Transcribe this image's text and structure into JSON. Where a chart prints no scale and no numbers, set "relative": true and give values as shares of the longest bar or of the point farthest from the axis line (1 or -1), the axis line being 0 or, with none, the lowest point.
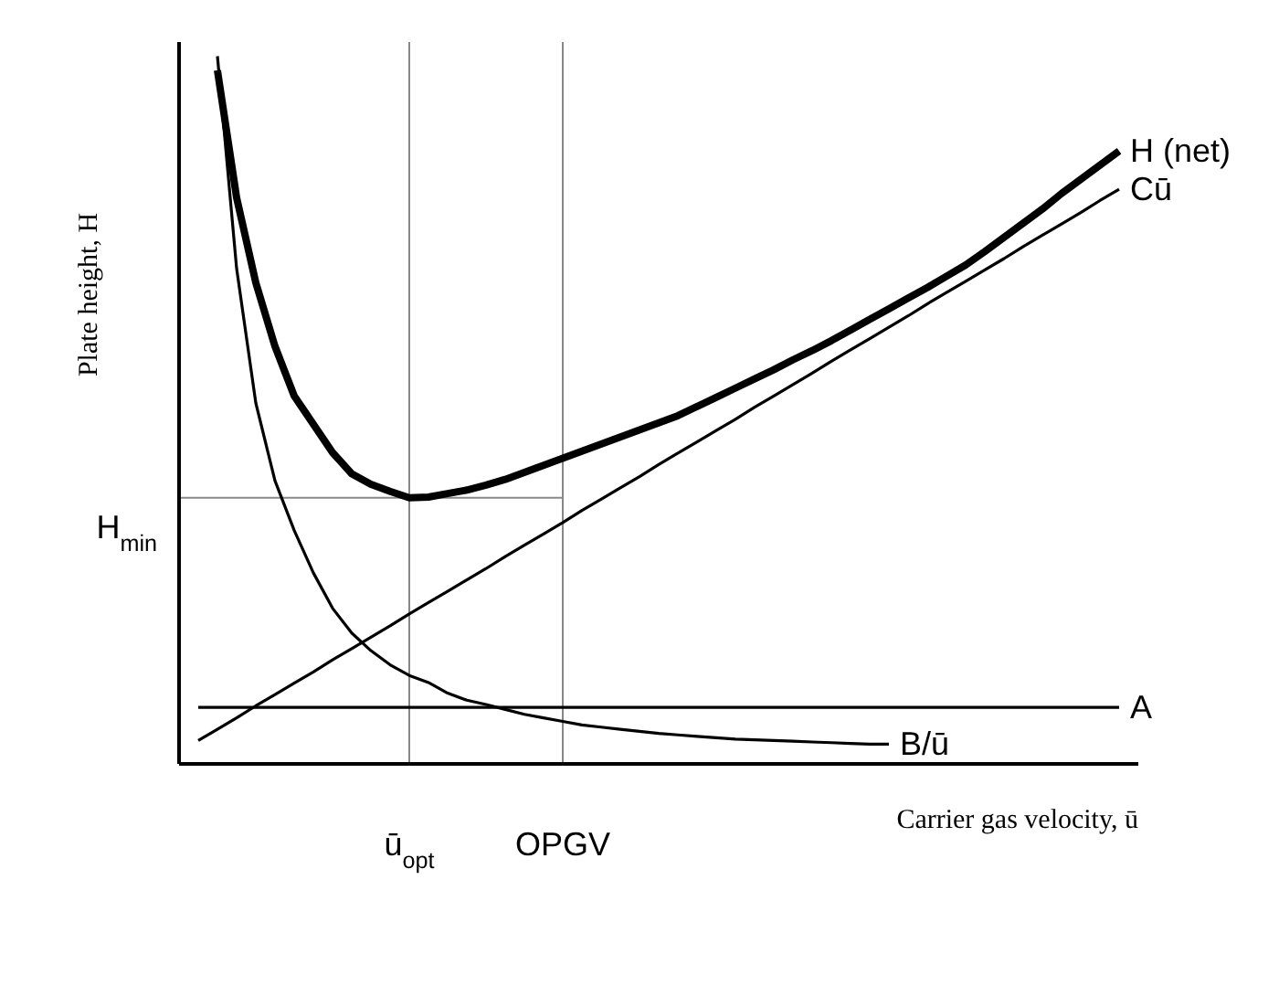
{
  "chart_data": {
    "type": "line",
    "relative": true,
    "xlabel": "Carrier gas velocity, ū",
    "ylabel": "Plate height, H",
    "marker": "none",
    "categories": [
      null,
      null,
      null,
      null,
      null,
      null,
      null,
      null,
      null,
      null,
      null,
      null,
      null,
      null,
      null,
      null,
      null,
      null,
      null,
      null,
      null,
      null,
      null,
      null,
      null,
      null,
      null,
      null,
      null,
      null,
      null,
      null,
      null,
      null,
      null,
      null,
      null,
      null,
      null,
      null,
      null,
      null,
      null,
      null,
      null,
      null,
      null,
      null,
      null,
      null,
      null
    ],
    "series": [
      {
        "name": "H (net)",
        "color": "#000000",
        "values": [
          null,
          null,
          0.98,
          0.8,
          0.68,
          0.59,
          0.52,
          0.48,
          0.44,
          0.41,
          0.395,
          0.385,
          0.376,
          0.377,
          0.382,
          0.387,
          0.394,
          0.402,
          0.412,
          0.422,
          0.432,
          0.442,
          0.452,
          0.462,
          0.472,
          0.482,
          0.492,
          0.505,
          0.518,
          0.531,
          0.544,
          0.557,
          0.571,
          0.584,
          0.598,
          0.613,
          0.628,
          0.643,
          0.658,
          0.673,
          0.689,
          0.705,
          0.724,
          0.744,
          0.764,
          0.784,
          0.806,
          0.826,
          0.846,
          0.866,
          null
        ]
      },
      {
        "name": "Cū",
        "color": "#000000",
        "values": [
          null,
          0.033,
          0.049,
          0.065,
          0.082,
          0.098,
          0.114,
          0.13,
          0.147,
          0.163,
          0.179,
          0.195,
          0.212,
          0.228,
          0.244,
          0.26,
          0.276,
          0.293,
          0.309,
          0.325,
          0.341,
          0.358,
          0.374,
          0.39,
          0.406,
          0.423,
          0.439,
          0.455,
          0.471,
          0.487,
          0.504,
          0.52,
          0.536,
          0.552,
          0.569,
          0.585,
          0.601,
          0.617,
          0.633,
          0.65,
          0.666,
          0.682,
          0.698,
          0.714,
          0.731,
          0.747,
          0.763,
          0.779,
          0.796,
          0.812,
          null
        ]
      },
      {
        "name": "A",
        "color": "#000000",
        "values": [
          null,
          0.08,
          0.08,
          0.08,
          0.08,
          0.08,
          0.08,
          0.08,
          0.08,
          0.08,
          0.08,
          0.08,
          0.08,
          0.08,
          0.08,
          0.08,
          0.08,
          0.08,
          0.08,
          0.08,
          0.08,
          0.08,
          0.08,
          0.08,
          0.08,
          0.08,
          0.08,
          0.08,
          0.08,
          0.08,
          0.08,
          0.08,
          0.08,
          0.08,
          0.08,
          0.08,
          0.08,
          0.08,
          0.08,
          0.08,
          0.08,
          0.08,
          0.08,
          0.08,
          0.08,
          0.08,
          0.08,
          0.08,
          0.08,
          0.08,
          null
        ]
      },
      {
        "name": "B/ū",
        "color": "#000000",
        "values": [
          null,
          null,
          1.0,
          0.7,
          0.51,
          0.4,
          0.33,
          0.27,
          0.22,
          0.185,
          0.16,
          0.14,
          0.125,
          0.115,
          0.1,
          0.09,
          0.084,
          0.077,
          0.07,
          0.065,
          0.06,
          0.055,
          0.052,
          0.049,
          0.046,
          0.043,
          0.041,
          0.039,
          0.037,
          0.035,
          0.034,
          0.033,
          0.032,
          0.031,
          0.03,
          0.029,
          0.028,
          0.028,
          null,
          null,
          null,
          null,
          null,
          null,
          null,
          null,
          null,
          null,
          null,
          null,
          null
        ]
      }
    ],
    "annotations": [
      "ū$_{opt}$",
      "OPGV"
    ],
    "ref_lines": [
      {
        "axis": "y",
        "value": 0.376,
        "label": "H$_{min}$",
        "color": "#888888"
      }
    ]
  }
}
